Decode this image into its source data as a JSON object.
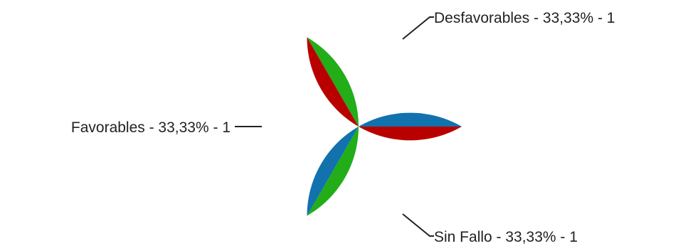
{
  "chart_data": {
    "type": "pie",
    "title": "",
    "slices": [
      {
        "name": "Desfavorables",
        "value": 1,
        "percent_text": "33,33%",
        "value_text": "1",
        "label": "Desfavorables -  33,33% -  1",
        "color": "#1172ae"
      },
      {
        "name": "Sin Fallo",
        "value": 1,
        "percent_text": "33,33%",
        "value_text": "1",
        "label": "Sin Fallo -  33,33% -  1",
        "color": "#22ad19"
      },
      {
        "name": "Favorables",
        "value": 1,
        "percent_text": "33,33%",
        "value_text": "1",
        "label": "Favorables -  33,33% -  1",
        "color": "#b90000"
      }
    ],
    "start_angle_deg": 0,
    "direction": "counterclockwise",
    "legend": "none",
    "label_position": "outside-with-leader-lines"
  }
}
